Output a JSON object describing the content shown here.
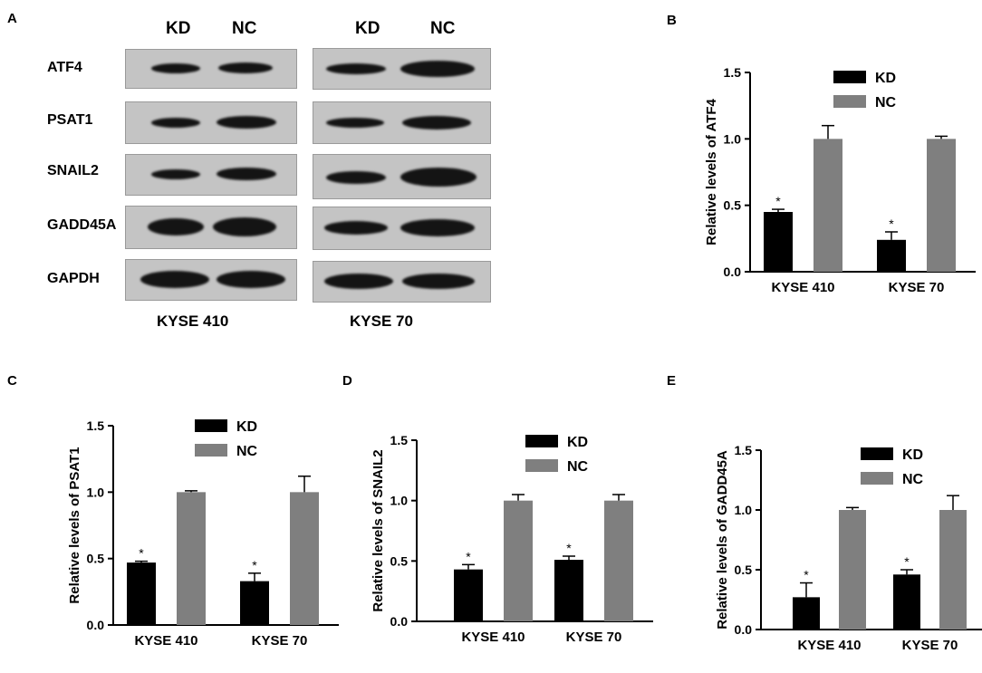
{
  "figure": {
    "panel_labels": {
      "a": "A",
      "b": "B",
      "c": "C",
      "d": "D",
      "e": "E"
    },
    "blot": {
      "lane_headers_left": [
        "KD",
        "NC"
      ],
      "lane_headers_right": [
        "KD",
        "NC"
      ],
      "rows": [
        "ATF4",
        "PSAT1",
        "SNAIL2",
        "GADD45A",
        "GAPDH"
      ],
      "cell_lines": [
        "KYSE 410",
        "KYSE 70"
      ]
    }
  },
  "chart_data": [
    {
      "type": "bar",
      "panel": "B",
      "title": "",
      "xlabel": "",
      "ylabel": "Relative levels of ATF4",
      "categories": [
        "KYSE 410",
        "KYSE 70"
      ],
      "ylim": [
        0,
        1.5
      ],
      "yticks": [
        "0.0",
        "0.5",
        "1.0",
        "1.5"
      ],
      "series": [
        {
          "name": "KD",
          "color": "#000000",
          "values": [
            0.45,
            0.24
          ],
          "errors": [
            0.02,
            0.06
          ],
          "marks": [
            "*",
            "*"
          ]
        },
        {
          "name": "NC",
          "color": "#7f7f7f",
          "values": [
            1.0,
            1.0
          ],
          "errors": [
            0.1,
            0.02
          ],
          "marks": [
            "",
            ""
          ]
        }
      ],
      "legend": "top-right",
      "grid": false
    },
    {
      "type": "bar",
      "panel": "C",
      "title": "",
      "xlabel": "",
      "ylabel": "Relative levels of PSAT1",
      "categories": [
        "KYSE 410",
        "KYSE 70"
      ],
      "ylim": [
        0,
        1.5
      ],
      "yticks": [
        "0.0",
        "0.5",
        "1.0",
        "1.5"
      ],
      "series": [
        {
          "name": "KD",
          "color": "#000000",
          "values": [
            0.47,
            0.33
          ],
          "errors": [
            0.01,
            0.06
          ],
          "marks": [
            "*",
            "*"
          ]
        },
        {
          "name": "NC",
          "color": "#7f7f7f",
          "values": [
            1.0,
            1.0
          ],
          "errors": [
            0.01,
            0.12
          ],
          "marks": [
            "",
            ""
          ]
        }
      ],
      "legend": "top-right",
      "grid": false
    },
    {
      "type": "bar",
      "panel": "D",
      "title": "",
      "xlabel": "",
      "ylabel": "Relative levels of SNAIL2",
      "categories": [
        "KYSE 410",
        "KYSE 70"
      ],
      "ylim": [
        0,
        1.5
      ],
      "yticks": [
        "0.0",
        "0.5",
        "1.0",
        "1.5"
      ],
      "series": [
        {
          "name": "KD",
          "color": "#000000",
          "values": [
            0.43,
            0.51
          ],
          "errors": [
            0.04,
            0.03
          ],
          "marks": [
            "*",
            "*"
          ]
        },
        {
          "name": "NC",
          "color": "#7f7f7f",
          "values": [
            1.0,
            1.0
          ],
          "errors": [
            0.05,
            0.05
          ],
          "marks": [
            "",
            ""
          ]
        }
      ],
      "legend": "top-right",
      "grid": false
    },
    {
      "type": "bar",
      "panel": "E",
      "title": "",
      "xlabel": "",
      "ylabel": "Relative levels of GADD45A",
      "categories": [
        "KYSE 410",
        "KYSE 70"
      ],
      "ylim": [
        0,
        1.5
      ],
      "yticks": [
        "0.0",
        "0.5",
        "1.0",
        "1.5"
      ],
      "series": [
        {
          "name": "KD",
          "color": "#000000",
          "values": [
            0.27,
            0.46
          ],
          "errors": [
            0.12,
            0.04
          ],
          "marks": [
            "*",
            "*"
          ]
        },
        {
          "name": "NC",
          "color": "#7f7f7f",
          "values": [
            1.0,
            1.0
          ],
          "errors": [
            0.02,
            0.12
          ],
          "marks": [
            "",
            ""
          ]
        }
      ],
      "legend": "top-right",
      "grid": false
    }
  ]
}
